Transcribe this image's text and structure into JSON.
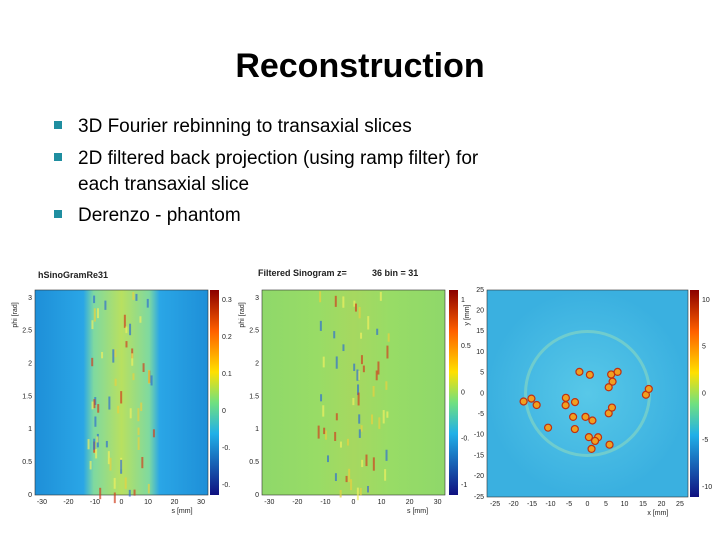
{
  "header": {
    "title": "Reconstruction"
  },
  "bullets": [
    "3D Fourier rebinning to transaxial slices",
    "2D filtered back projection (using ramp filter) for",
    "each transaxial slice",
    "Derenzo - phantom"
  ],
  "plots": [
    {
      "title": "hSinoGramRe31",
      "ylabel": "phi [rad]",
      "xlabel": "s [mm]",
      "yticks": [
        "3",
        "2.5",
        "2",
        "1.5",
        "1",
        "0.5",
        "0"
      ],
      "xticks": [
        "-30",
        "-20",
        "-10",
        "0",
        "10",
        "20",
        "30"
      ],
      "colorbar": [
        "0.3",
        "0.2",
        "0.1",
        "0",
        "-0.",
        "-0."
      ]
    },
    {
      "title": "Filtered Sinogram z=",
      "title2": "36 bin = 31",
      "ylabel": "phi [rad]",
      "xlabel": "s [mm]",
      "yticks": [
        "3",
        "2.5",
        "2",
        "1.5",
        "1",
        "0.5",
        "0"
      ],
      "xticks": [
        "-30",
        "-20",
        "-10",
        "0",
        "10",
        "20",
        "30"
      ],
      "colorbar": [
        "1",
        "0.5",
        "0",
        "-0.",
        "-1"
      ]
    },
    {
      "ylabel": "y [mm]",
      "xlabel": "x [mm]",
      "yticks": [
        "25",
        "20",
        "15",
        "10",
        "5",
        "0",
        "-5",
        "-10",
        "-15",
        "-20",
        "-25"
      ],
      "xticks": [
        "-25",
        "-20",
        "-15",
        "-10",
        "-5",
        "0",
        "5",
        "10",
        "15",
        "20",
        "25"
      ],
      "colorbar": [
        "10",
        "5",
        "0",
        "-5",
        "-10"
      ]
    }
  ]
}
